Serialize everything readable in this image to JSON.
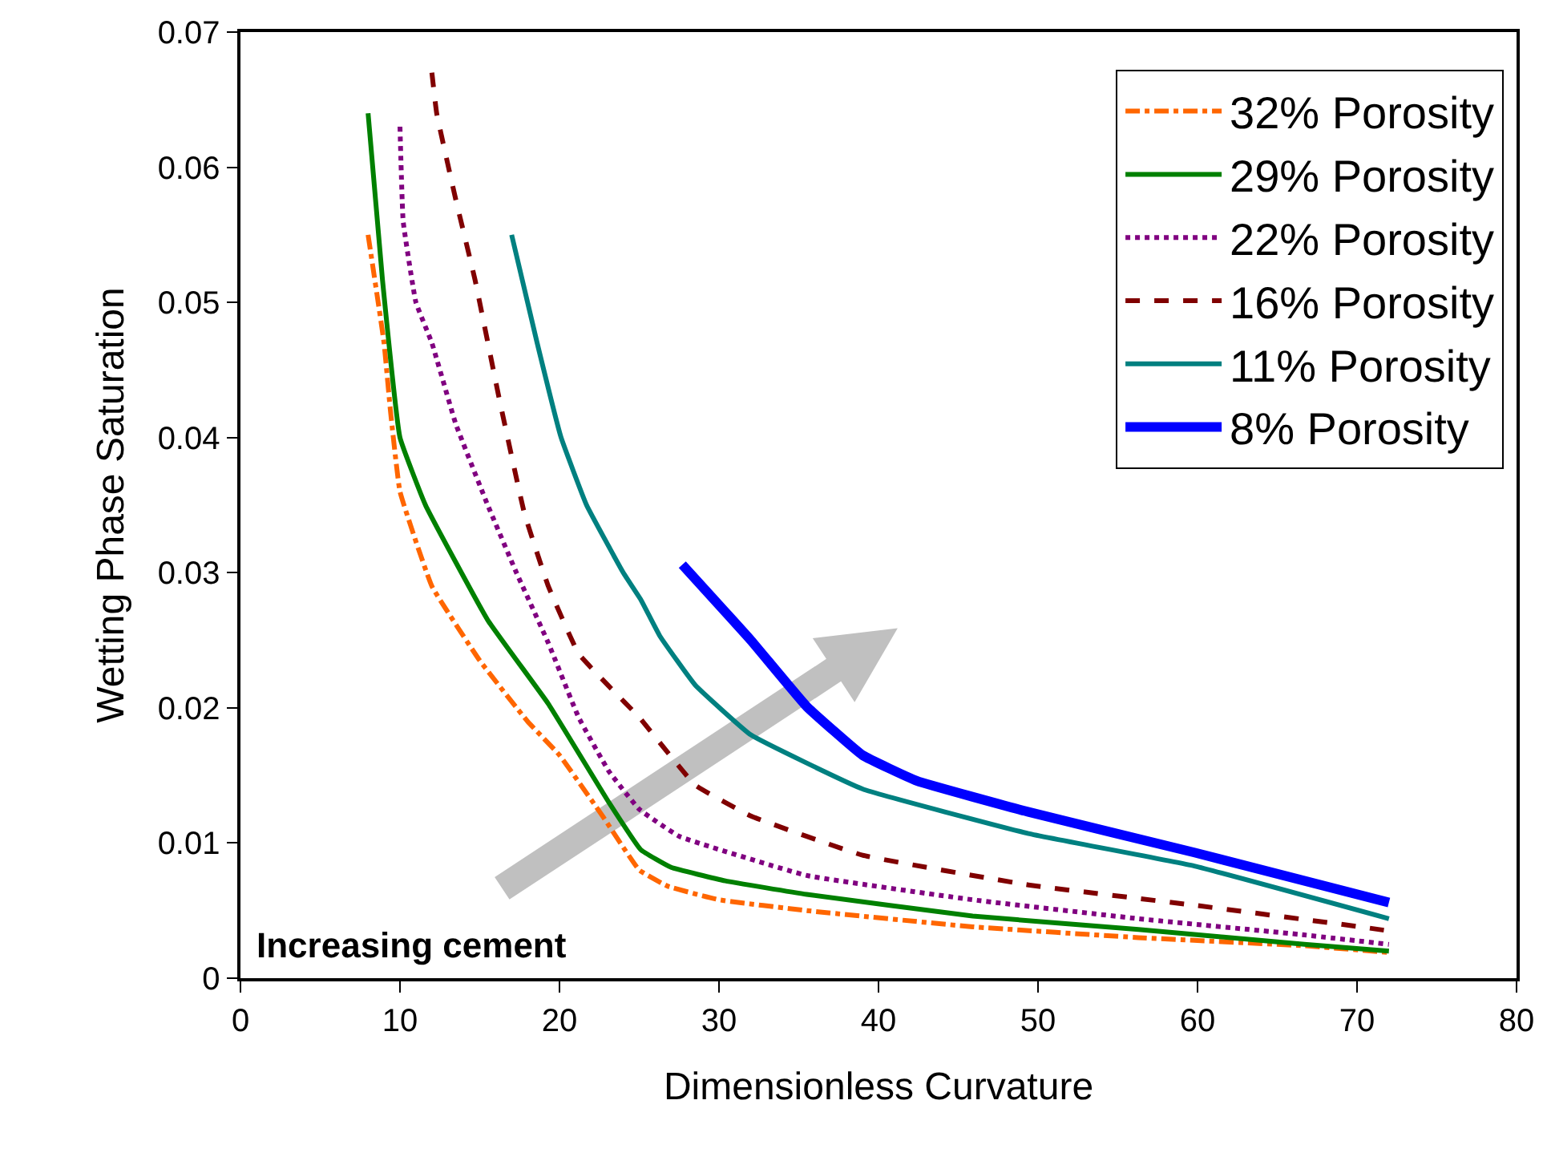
{
  "chart_data": {
    "type": "line",
    "xlabel": "Dimensionless Curvature",
    "ylabel": "Wetting Phase Saturation",
    "xlim": [
      0,
      80
    ],
    "xticks": [
      0,
      10,
      20,
      30,
      40,
      50,
      60,
      70,
      80
    ],
    "ylim": [
      0,
      0.07
    ],
    "yticks": [
      0,
      0.01,
      0.02,
      0.03,
      0.04,
      0.05,
      0.06,
      0.07
    ],
    "grid": false,
    "legend": "top right",
    "marker": "none",
    "annotations": [
      "Increasing cement"
    ],
    "series": [
      {
        "name": "32% Porosity",
        "color": "#ff6600",
        "line_style": "dashdot",
        "x": [
          8,
          9,
          9.4,
          10,
          12,
          15,
          18,
          20,
          22.7,
          25,
          26.8,
          30,
          35.5,
          45.9,
          56.3,
          66.7,
          72
        ],
        "values": [
          0.055,
          0.047,
          0.042,
          0.036,
          0.029,
          0.0235,
          0.019,
          0.0165,
          0.012,
          0.008,
          0.0068,
          0.0058,
          0.005,
          0.0038,
          0.003,
          0.0024,
          0.0019
        ]
      },
      {
        "name": "29% Porosity",
        "color": "#008000",
        "line_style": "solid",
        "x": [
          8,
          8.9,
          10,
          11.6,
          15.5,
          19.3,
          23.1,
          25.1,
          27,
          30.4,
          35.5,
          45.9,
          56.3,
          66.7,
          72
        ],
        "values": [
          0.064,
          0.0517,
          0.04,
          0.035,
          0.0265,
          0.0203,
          0.013,
          0.0095,
          0.0082,
          0.0072,
          0.0062,
          0.0046,
          0.0036,
          0.0025,
          0.002
        ]
      },
      {
        "name": "22% Porosity",
        "color": "#800080",
        "line_style": "dotted",
        "x": [
          10,
          10.2,
          11,
          12,
          13.5,
          15.5,
          17.3,
          19.3,
          21.2,
          23.1,
          25,
          27.5,
          35.5,
          45.9,
          56.3,
          66.7,
          72
        ],
        "values": [
          0.063,
          0.056,
          0.05,
          0.047,
          0.041,
          0.035,
          0.03,
          0.0248,
          0.0193,
          0.0153,
          0.0125,
          0.0105,
          0.0076,
          0.0058,
          0.0044,
          0.0032,
          0.0025
        ]
      },
      {
        "name": "16% Porosity",
        "color": "#800000",
        "line_style": "dashed",
        "x": [
          12,
          12.3,
          13.5,
          14.7,
          16.2,
          17.8,
          19.3,
          21.2,
          23.1,
          25,
          28.5,
          32,
          39,
          49.4,
          59.8,
          70.2,
          72
        ],
        "values": [
          0.067,
          0.064,
          0.0576,
          0.0517,
          0.043,
          0.0344,
          0.029,
          0.024,
          0.0216,
          0.0193,
          0.0143,
          0.012,
          0.0091,
          0.0069,
          0.0054,
          0.0038,
          0.0035
        ]
      },
      {
        "name": "11% Porosity",
        "color": "#008080",
        "line_style": "solid",
        "x": [
          17,
          18.6,
          20.1,
          21.7,
          24,
          25.1,
          26.3,
          28.5,
          32,
          39,
          49.4,
          59.8,
          72
        ],
        "values": [
          0.055,
          0.047,
          0.04,
          0.035,
          0.03,
          0.028,
          0.0253,
          0.0217,
          0.018,
          0.014,
          0.0107,
          0.0083,
          0.0044
        ]
      },
      {
        "name": "8% Porosity",
        "color": "#0000ff",
        "line_style": "solid",
        "x": [
          27.7,
          32,
          35.5,
          39,
          42.4,
          49.4,
          59.8,
          72
        ],
        "values": [
          0.0306,
          0.025,
          0.0201,
          0.0165,
          0.0146,
          0.0123,
          0.0093,
          0.0056
        ]
      }
    ]
  }
}
